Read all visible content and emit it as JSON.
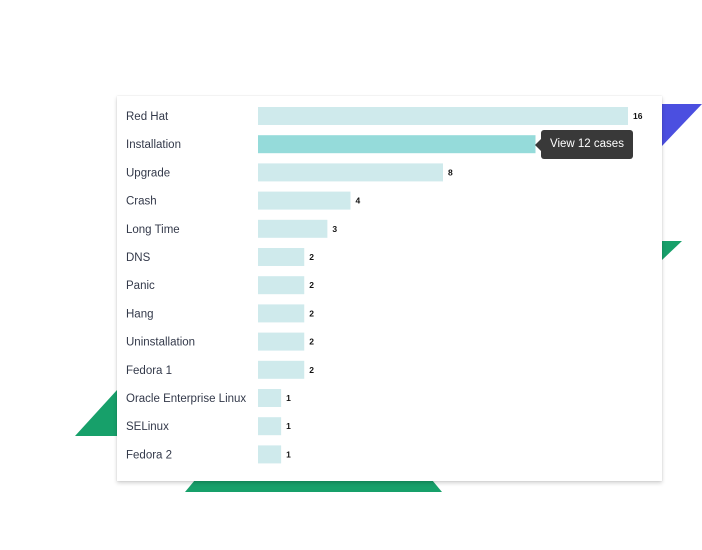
{
  "chart_data": {
    "type": "bar",
    "orientation": "horizontal",
    "categories": [
      "Red Hat",
      "Installation",
      "Upgrade",
      "Crash",
      "Long Time",
      "DNS",
      "Panic",
      "Hang",
      "Uninstallation",
      "Fedora 1",
      "Oracle Enterprise Linux",
      "SELinux",
      "Fedora 2"
    ],
    "values": [
      16,
      12,
      8,
      4,
      3,
      2,
      2,
      2,
      2,
      2,
      1,
      1,
      1
    ],
    "value_labels": [
      "16",
      "",
      "8",
      "4",
      "3",
      "2",
      "2",
      "2",
      "2",
      "2",
      "1",
      "1",
      "1"
    ],
    "highlighted_index": 1,
    "xlim": [
      0,
      16
    ],
    "grid": false,
    "legend": "none"
  },
  "tooltip": {
    "text": "View 12 cases"
  },
  "colors": {
    "bar": "#cfeaec",
    "bar_highlight": "#95dbda",
    "decor_blue": "#4b4fe0",
    "decor_green": "#17a06a"
  }
}
